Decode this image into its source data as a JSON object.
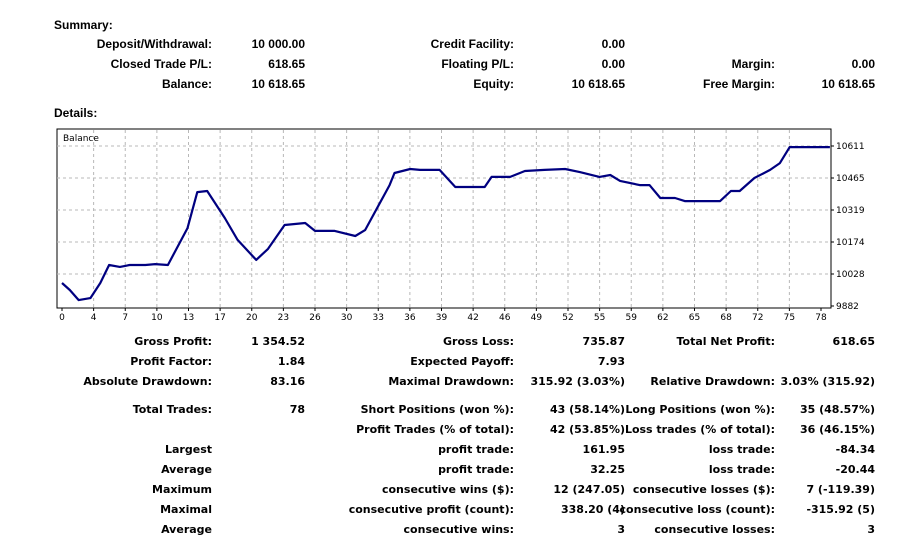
{
  "summary": {
    "heading": "Summary:",
    "rows": [
      [
        "Deposit/Withdrawal:",
        "10 000.00",
        "Credit Facility:",
        "0.00",
        "",
        ""
      ],
      [
        "Closed Trade P/L:",
        "618.65",
        "Floating P/L:",
        "0.00",
        "Margin:",
        "0.00"
      ],
      [
        "Balance:",
        "10 618.65",
        "Equity:",
        "10 618.65",
        "Free Margin:",
        "10 618.65"
      ]
    ]
  },
  "details": {
    "heading": "Details:",
    "rows": [
      [
        "Gross Profit:",
        "1 354.52",
        "Gross Loss:",
        "735.87",
        "Total Net Profit:",
        "618.65"
      ],
      [
        "Profit Factor:",
        "1.84",
        "Expected Payoff:",
        "7.93",
        "",
        ""
      ],
      [
        "Absolute Drawdown:",
        "83.16",
        "Maximal Drawdown:",
        "315.92 (3.03%)",
        "Relative Drawdown:",
        "3.03% (315.92)"
      ],
      [
        "Total Trades:",
        "78",
        "Short Positions (won %):",
        "43 (58.14%)",
        "Long Positions (won %):",
        "35 (48.57%)"
      ],
      [
        "",
        "",
        "Profit Trades (% of total):",
        "42 (53.85%)",
        "Loss trades (% of total):",
        "36 (46.15%)"
      ],
      [
        "Largest",
        "",
        "profit trade:",
        "161.95",
        "loss trade:",
        "-84.34"
      ],
      [
        "Average",
        "",
        "profit trade:",
        "32.25",
        "loss trade:",
        "-20.44"
      ],
      [
        "Maximum",
        "",
        "consecutive wins ($):",
        "12 (247.05)",
        "consecutive losses ($):",
        "7 (-119.39)"
      ],
      [
        "Maximal",
        "",
        "consecutive profit (count):",
        "338.20 (4)",
        "consecutive loss (count):",
        "-315.92 (5)"
      ],
      [
        "Average",
        "",
        "consecutive wins:",
        "3",
        "consecutive losses:",
        "3"
      ]
    ]
  },
  "chart_data": {
    "type": "line",
    "title": "Balance",
    "line_color": "#000080",
    "grid": true,
    "xlim": [
      0,
      78
    ],
    "ylim": [
      9882,
      10611
    ],
    "x_ticks": [
      "0",
      "4",
      "7",
      "10",
      "13",
      "17",
      "20",
      "23",
      "26",
      "30",
      "33",
      "36",
      "39",
      "42",
      "46",
      "49",
      "52",
      "55",
      "59",
      "62",
      "65",
      "68",
      "72",
      "75",
      "78"
    ],
    "y_ticks": [
      "10611",
      "10465",
      "10319",
      "10174",
      "10028",
      "9882"
    ],
    "series": [
      {
        "x": [
          0,
          0.8,
          1.7,
          2.9,
          3.9,
          4.8,
          5.9,
          6.9,
          8.5,
          9.5,
          10.8,
          12.8,
          13.8,
          14.8,
          16.6,
          17.9,
          19.8,
          21.0,
          22.7,
          24.8,
          25.8,
          27.8,
          29.9,
          30.9,
          33.4,
          33.9,
          35.5,
          36.5,
          38.5,
          40.1,
          43.1,
          43.8,
          45.7,
          47.2,
          49.2,
          51.3,
          52.8,
          54.8,
          55.9,
          56.9,
          58.9,
          59.9,
          61.0,
          62.5,
          63.5,
          67.1,
          68.2,
          69.1,
          70.6,
          72.2,
          73.2,
          74.2,
          78.3
        ],
        "y": [
          9987,
          9955,
          9909,
          9918,
          9987,
          10069,
          10060,
          10069,
          10069,
          10073,
          10069,
          10237,
          10401,
          10406,
          10283,
          10183,
          10092,
          10142,
          10251,
          10260,
          10224,
          10224,
          10201,
          10228,
          10433,
          10488,
          10506,
          10502,
          10502,
          10424,
          10424,
          10470,
          10470,
          10497,
          10502,
          10506,
          10492,
          10470,
          10479,
          10452,
          10433,
          10433,
          10374,
          10374,
          10360,
          10360,
          10406,
          10406,
          10465,
          10502,
          10533,
          10606,
          10606
        ]
      }
    ]
  }
}
